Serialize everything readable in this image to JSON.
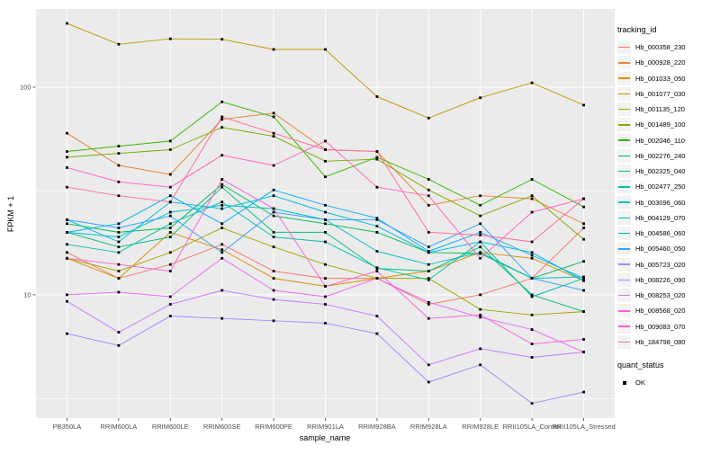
{
  "legend": {
    "tracking_title": "tracking_id",
    "quant_title": "quant_status",
    "quant_items": [
      {
        "label": "OK"
      }
    ]
  },
  "colors": {
    "panel_bg": "#EBEBEB",
    "grid": "#FFFFFF",
    "tick_mark": "#333333",
    "axis_text": "#4D4D4D",
    "text": "#000000",
    "legend_key_bg": "#F2F2F2"
  },
  "chart_data": {
    "type": "line",
    "title": "",
    "xlabel": "sample_name",
    "ylabel": "FPKM + 1",
    "y_scale": "log10",
    "ylim": [
      2.55,
      238
    ],
    "y_ticks": [
      10,
      100
    ],
    "y_tick_labels": [
      "10",
      "100"
    ],
    "y_minor_ticks": [
      3.1623,
      31.6228
    ],
    "grid": true,
    "legend_position": "right",
    "point_shape": "square",
    "point_color": "#000000",
    "categories": [
      "PB350LA",
      "RRIM600LA",
      "RRIM600LE",
      "RRIM600SE",
      "RRIM600PE",
      "RRIM901LA",
      "RRIM928BA",
      "RRIM928LA",
      "RRIM928LE",
      "RRII105LA_Control",
      "RRII105LA_Stressed"
    ],
    "series": [
      {
        "name": "Hb_000358_230",
        "color": "#F8766D",
        "values": [
          16,
          12,
          14,
          17.5,
          13,
          12,
          12,
          9,
          10,
          12,
          21
        ]
      },
      {
        "name": "Hb_000928_220",
        "color": "#EA8331",
        "values": [
          60,
          42,
          38,
          70,
          75,
          50,
          49,
          27,
          30,
          29,
          22
        ]
      },
      {
        "name": "Hb_001033_050",
        "color": "#D89000",
        "values": [
          15,
          12,
          20,
          16.5,
          12,
          11,
          12,
          13,
          16,
          15,
          11.7
        ]
      },
      {
        "name": "Hb_001077_030",
        "color": "#C09B00",
        "values": [
          203,
          161,
          171,
          170,
          152,
          152,
          90,
          71,
          89,
          105,
          82
        ]
      },
      {
        "name": "Hb_001135_120",
        "color": "#A3A500",
        "values": [
          15,
          13,
          16,
          21,
          17,
          14,
          12,
          12,
          8.5,
          8,
          8.3
        ]
      },
      {
        "name": "Hb_001489_100",
        "color": "#7CAE00",
        "values": [
          46,
          48,
          50,
          64,
          58,
          44,
          45,
          32,
          24,
          30,
          18.5
        ]
      },
      {
        "name": "Hb_002046_110",
        "color": "#39B600",
        "values": [
          49,
          52,
          55,
          85,
          72,
          37,
          46,
          36,
          27,
          36,
          26.5
        ]
      },
      {
        "name": "Hb_002276_240",
        "color": "#00BB4E",
        "values": [
          22,
          20,
          21,
          34,
          24,
          22,
          20,
          16,
          15.8,
          12,
          14.5
        ]
      },
      {
        "name": "Hb_002325_040",
        "color": "#00BF7D",
        "values": [
          20,
          17,
          19,
          33,
          20,
          20,
          13.4,
          13,
          17,
          10,
          8.3
        ]
      },
      {
        "name": "Hb_002477_250",
        "color": "#00C1A3",
        "values": [
          17.5,
          16,
          22,
          28,
          19,
          18,
          13.5,
          11.8,
          18,
          9.8,
          12
        ]
      },
      {
        "name": "Hb_003096_060",
        "color": "#00BFC4",
        "values": [
          20,
          19,
          25,
          27,
          26,
          23,
          16.2,
          14,
          16,
          12,
          12.2
        ]
      },
      {
        "name": "Hb_004129_070",
        "color": "#00BAE0",
        "values": [
          23,
          18,
          28,
          26,
          30,
          25,
          21.4,
          16,
          18,
          16,
          11.7
        ]
      },
      {
        "name": "Hb_004586_060",
        "color": "#00B0F6",
        "values": [
          20,
          22,
          30,
          22,
          32,
          27,
          23.4,
          16.2,
          20,
          15.5,
          12
        ]
      },
      {
        "name": "Hb_005460_050",
        "color": "#35A2FF",
        "values": [
          23,
          21,
          24,
          16,
          25,
          23,
          23,
          17,
          22,
          12,
          10.5
        ]
      },
      {
        "name": "Hb_005723_020",
        "color": "#9590FF",
        "values": [
          6.5,
          5.7,
          7.9,
          7.7,
          7.5,
          7.3,
          6.5,
          3.8,
          4.6,
          3,
          3.4
        ]
      },
      {
        "name": "Hb_008226_090",
        "color": "#C77CFF",
        "values": [
          9.3,
          6.6,
          9,
          10.5,
          9.5,
          9,
          7.9,
          4.6,
          5.5,
          5,
          5.3
        ]
      },
      {
        "name": "Hb_008253_020",
        "color": "#E76BF3",
        "values": [
          10,
          10.3,
          9.8,
          15,
          10.5,
          9.8,
          12,
          9.2,
          7.8,
          6.8,
          5.3
        ]
      },
      {
        "name": "Hb_008568_020",
        "color": "#FA62DB",
        "values": [
          15,
          14,
          13,
          36,
          26,
          11,
          13,
          7.7,
          8,
          5.8,
          6.1
        ]
      },
      {
        "name": "Hb_009083_070",
        "color": "#FF62BC",
        "values": [
          41,
          35,
          33,
          47,
          42,
          55,
          33,
          30,
          15,
          25,
          29
        ]
      },
      {
        "name": "Hb_184798_080",
        "color": "#FF6A98",
        "values": [
          33,
          30,
          28,
          72,
          60,
          50,
          49,
          20,
          19.4,
          18,
          29
        ]
      }
    ]
  }
}
